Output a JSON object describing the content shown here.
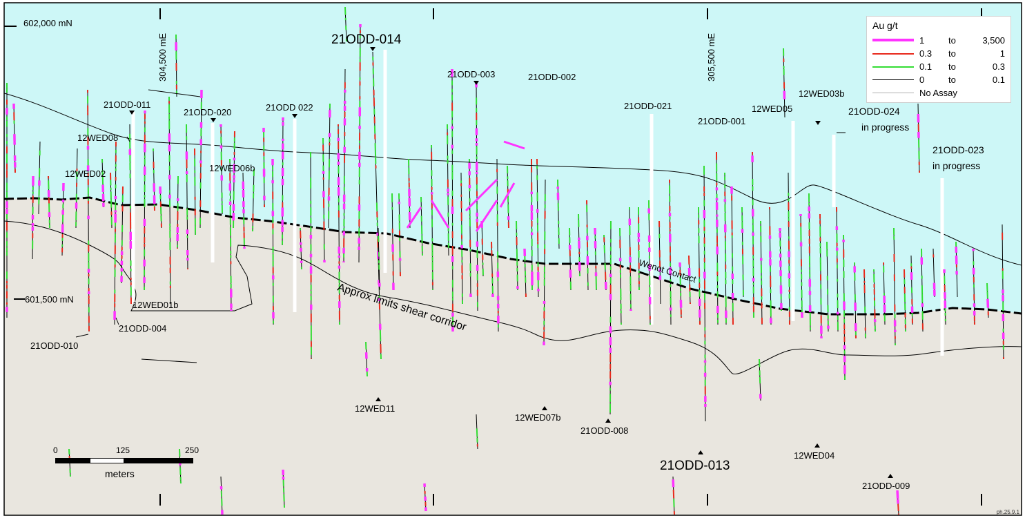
{
  "colors": {
    "north_area": "#cdf7f7",
    "south_area": "#e9e6df",
    "grade_high": "#ff33ff",
    "grade_mid": "#e8291c",
    "grade_low": "#33dd33",
    "grade_trace": "#000000",
    "no_assay": "#b0b0b0",
    "collar_mark": "#ffffff"
  },
  "grid_labels": {
    "northing_top": "602,000 mN",
    "northing_mid": "601,500 mN",
    "easting_left": "304,500 mE",
    "easting_right": "305,500 mE"
  },
  "drillholes": [
    "21ODD-014",
    "21ODD-003",
    "21ODD-002",
    "21ODD-011",
    "21ODD-020",
    "21ODD 022",
    "21ODD-021",
    "21ODD-001",
    "12WED05",
    "12WED03b",
    "21ODD-024",
    "21ODD-023",
    "12WED08",
    "12WED02",
    "12WED06b",
    "12WED01b",
    "21ODD-004",
    "21ODD-010",
    "12WED11",
    "12WED07b",
    "21ODD-008",
    "21ODD-013",
    "12WED04",
    "21ODD-009"
  ],
  "status_labels": {
    "odd_024": "in progress",
    "odd_023": "in progress"
  },
  "features": {
    "shear_corridor": "Approx limits shear corridor",
    "contact": "Wenot Contact"
  },
  "legend": {
    "title": "Au g/t",
    "rows": [
      {
        "from": "1",
        "to_word": "to",
        "upper": "3,500",
        "color": "#ff33ff"
      },
      {
        "from": "0.3",
        "to_word": "to",
        "upper": "1",
        "color": "#e8291c"
      },
      {
        "from": "0.1",
        "to_word": "to",
        "upper": "0.3",
        "color": "#33dd33"
      },
      {
        "from": "0",
        "to_word": "to",
        "upper": "0.1",
        "color": "#000000"
      }
    ],
    "no_assay": "No Assay"
  },
  "scale_bar": {
    "ticks": [
      "0",
      "125",
      "250"
    ],
    "units": "meters"
  },
  "figure_code": "ph.25.9.1"
}
